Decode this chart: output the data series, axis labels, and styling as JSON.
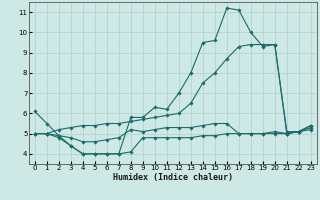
{
  "title": "",
  "xlabel": "Humidex (Indice chaleur)",
  "ylabel": "",
  "xlim": [
    -0.5,
    23.5
  ],
  "ylim": [
    3.5,
    11.5
  ],
  "xticks": [
    0,
    1,
    2,
    3,
    4,
    5,
    6,
    7,
    8,
    9,
    10,
    11,
    12,
    13,
    14,
    15,
    16,
    17,
    18,
    19,
    20,
    21,
    22,
    23
  ],
  "yticks": [
    4,
    5,
    6,
    7,
    8,
    9,
    10,
    11
  ],
  "background_color": "#cde8e5",
  "grid_color": "#b0d0ce",
  "line_color": "#1a6b6b",
  "series": [
    {
      "x": [
        0,
        1,
        2,
        3,
        4,
        5,
        6,
        7,
        8,
        9,
        10,
        11,
        12,
        13,
        14,
        15,
        16,
        17,
        18,
        19,
        20,
        21,
        22,
        23
      ],
      "y": [
        6.1,
        5.5,
        4.9,
        4.4,
        4.0,
        4.0,
        4.0,
        4.0,
        5.8,
        5.8,
        6.3,
        6.2,
        7.0,
        8.0,
        9.5,
        9.6,
        11.2,
        11.1,
        10.0,
        9.3,
        9.4,
        5.0,
        5.1,
        5.4
      ]
    },
    {
      "x": [
        0,
        1,
        2,
        3,
        4,
        5,
        6,
        7,
        8,
        9,
        10,
        11,
        12,
        13,
        14,
        15,
        16,
        17,
        18,
        19,
        20,
        21,
        22,
        23
      ],
      "y": [
        5.0,
        5.0,
        5.2,
        5.3,
        5.4,
        5.4,
        5.5,
        5.5,
        5.6,
        5.7,
        5.8,
        5.9,
        6.0,
        6.5,
        7.5,
        8.0,
        8.7,
        9.3,
        9.4,
        9.4,
        9.4,
        5.1,
        5.1,
        5.4
      ]
    },
    {
      "x": [
        0,
        1,
        2,
        3,
        4,
        5,
        6,
        7,
        8,
        9,
        10,
        11,
        12,
        13,
        14,
        15,
        16,
        17,
        18,
        19,
        20,
        21,
        22,
        23
      ],
      "y": [
        5.0,
        5.0,
        4.9,
        4.8,
        4.6,
        4.6,
        4.7,
        4.8,
        5.2,
        5.1,
        5.2,
        5.3,
        5.3,
        5.3,
        5.4,
        5.5,
        5.5,
        5.0,
        5.0,
        5.0,
        5.1,
        5.0,
        5.1,
        5.3
      ]
    },
    {
      "x": [
        0,
        1,
        2,
        3,
        4,
        5,
        6,
        7,
        8,
        9,
        10,
        11,
        12,
        13,
        14,
        15,
        16,
        17,
        18,
        19,
        20,
        21,
        22,
        23
      ],
      "y": [
        5.0,
        5.0,
        4.8,
        4.4,
        4.0,
        4.0,
        4.0,
        4.0,
        4.1,
        4.8,
        4.8,
        4.8,
        4.8,
        4.8,
        4.9,
        4.9,
        5.0,
        5.0,
        5.0,
        5.0,
        5.0,
        5.0,
        5.1,
        5.2
      ]
    }
  ]
}
